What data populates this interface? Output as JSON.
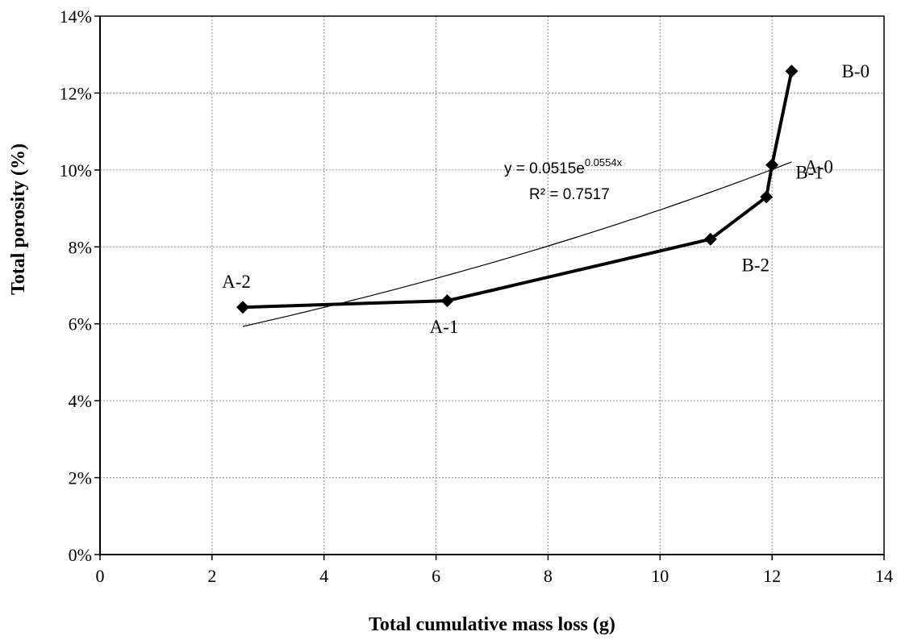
{
  "chart_data": {
    "type": "scatter",
    "xlabel": "Total cumulative mass loss (g)",
    "ylabel": "Total porosity (%)",
    "xlim": [
      0,
      14
    ],
    "ylim": [
      0,
      0.14
    ],
    "x_ticks": [
      0,
      2,
      4,
      6,
      8,
      10,
      12,
      14
    ],
    "y_ticks": [
      0,
      0.02,
      0.04,
      0.06,
      0.08,
      0.1,
      0.12,
      0.14
    ],
    "x_tick_labels": [
      "0",
      "2",
      "4",
      "6",
      "8",
      "10",
      "12",
      "14"
    ],
    "y_tick_labels": [
      "0%",
      "2%",
      "4%",
      "6%",
      "8%",
      "10%",
      "12%",
      "14%"
    ],
    "grid": true,
    "series": [
      {
        "marker": "diamond",
        "line": "thick",
        "color": "#000000",
        "points": [
          {
            "label": "A-2",
            "x": 2.55,
            "y": 0.0643
          },
          {
            "label": "A-1",
            "x": 6.2,
            "y": 0.066
          },
          {
            "label": "B-2",
            "x": 10.9,
            "y": 0.082
          },
          {
            "label": "B-1",
            "x": 11.9,
            "y": 0.093
          },
          {
            "label": "A-0",
            "x": 12.0,
            "y": 0.1013
          },
          {
            "label": "B-0",
            "x": 12.35,
            "y": 0.1257
          }
        ]
      }
    ],
    "trendline": {
      "type": "exponential",
      "a": 0.0515,
      "b": 0.0554,
      "x_range": [
        2.55,
        12.35
      ],
      "equation_text": "y = 0.0515e",
      "equation_exponent": "0.0554x",
      "r2_text": "R² = 0.7517"
    }
  }
}
